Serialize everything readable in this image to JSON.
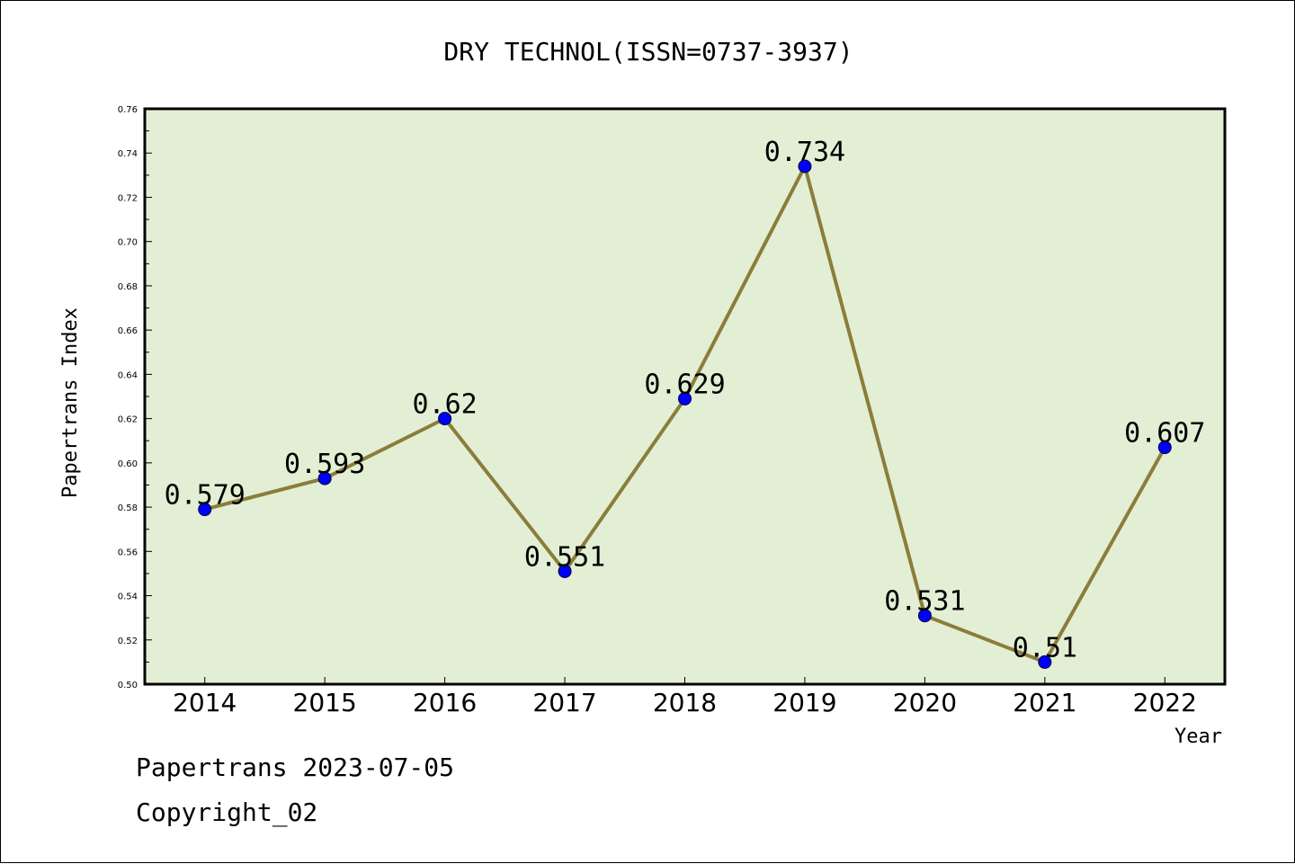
{
  "footer": {
    "line1": "Papertrans 2023-07-05",
    "line2": "Copyright_02"
  },
  "chart_data": {
    "type": "line",
    "title": "DRY TECHNOL(ISSN=0737-3937)",
    "xlabel": "Year",
    "ylabel": "Papertrans Index",
    "categories": [
      "2014",
      "2015",
      "2016",
      "2017",
      "2018",
      "2019",
      "2020",
      "2021",
      "2022"
    ],
    "series": [
      {
        "values": [
          0.579,
          0.593,
          0.62,
          0.551,
          0.629,
          0.734,
          0.531,
          0.51,
          0.607
        ]
      }
    ],
    "data_labels": [
      "0.579",
      "0.593",
      "0.62",
      "0.551",
      "0.629",
      "0.734",
      "0.531",
      "0.51",
      "0.607"
    ],
    "ylim": [
      0.5,
      0.76
    ],
    "yticks": [
      "0.50",
      "0.52",
      "0.54",
      "0.56",
      "0.58",
      "0.60",
      "0.62",
      "0.64",
      "0.66",
      "0.68",
      "0.70",
      "0.72",
      "0.74",
      "0.76"
    ],
    "grid": false,
    "legend": "none",
    "colors": {
      "plot_background": "#e2efd5",
      "line": "#8b7d3a",
      "marker": "#0000ff",
      "axis": "#000000"
    }
  }
}
